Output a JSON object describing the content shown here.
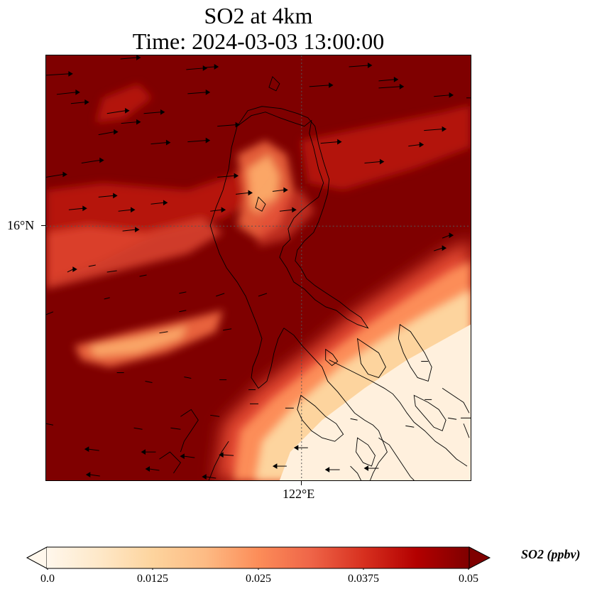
{
  "title": {
    "line1": "SO2 at 4km",
    "line2": "Time: 2024-03-03 13:00:00"
  },
  "axes": {
    "lat_label": "16°N",
    "lon_label": "122°E"
  },
  "colorbar": {
    "title": "SO2 (ppbv)",
    "ticks": [
      "0.0",
      "0.0125",
      "0.025",
      "0.0375",
      "0.05"
    ],
    "colormap": "OrRd",
    "extend": "both"
  },
  "colors": {
    "high": "#7f0000",
    "mid": "#e34a33",
    "low": "#fff7ec",
    "coastline": "#000000",
    "wind_arrows": "#000000"
  },
  "map": {
    "features": [
      "SO2 concentration field",
      "coastlines",
      "wind vectors",
      "lat/lon gridlines"
    ]
  }
}
